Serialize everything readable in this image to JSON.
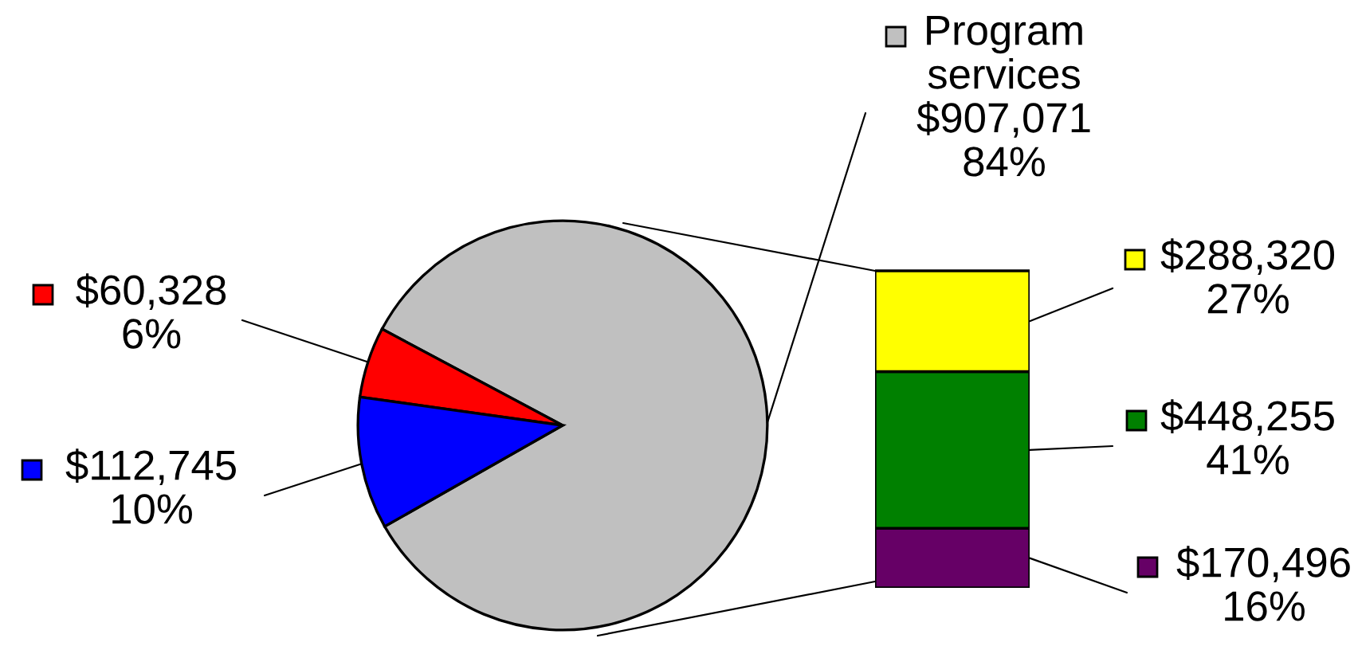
{
  "chart_data": [
    {
      "type": "pie",
      "categories": [
        "Program services",
        null,
        null
      ],
      "values": [
        907071,
        60328,
        112745
      ],
      "colors": [
        "#c0c0c0",
        "#ff0000",
        "#0000ff"
      ],
      "value_labels": [
        "$907,071\n84%",
        "$60,328\n6%",
        "$112,745\n10%"
      ]
    },
    {
      "type": "bar",
      "stacked": true,
      "categories": [
        null
      ],
      "series": [
        {
          "color": "#660066",
          "values": [
            170496
          ],
          "value_labels": [
            "$170,496\n16%"
          ]
        },
        {
          "color": "#008000",
          "values": [
            448255
          ],
          "value_labels": [
            "$448,255\n41%"
          ]
        },
        {
          "color": "#ffff00",
          "values": [
            288320
          ],
          "value_labels": [
            "$288,320\n27%"
          ]
        }
      ]
    }
  ]
}
